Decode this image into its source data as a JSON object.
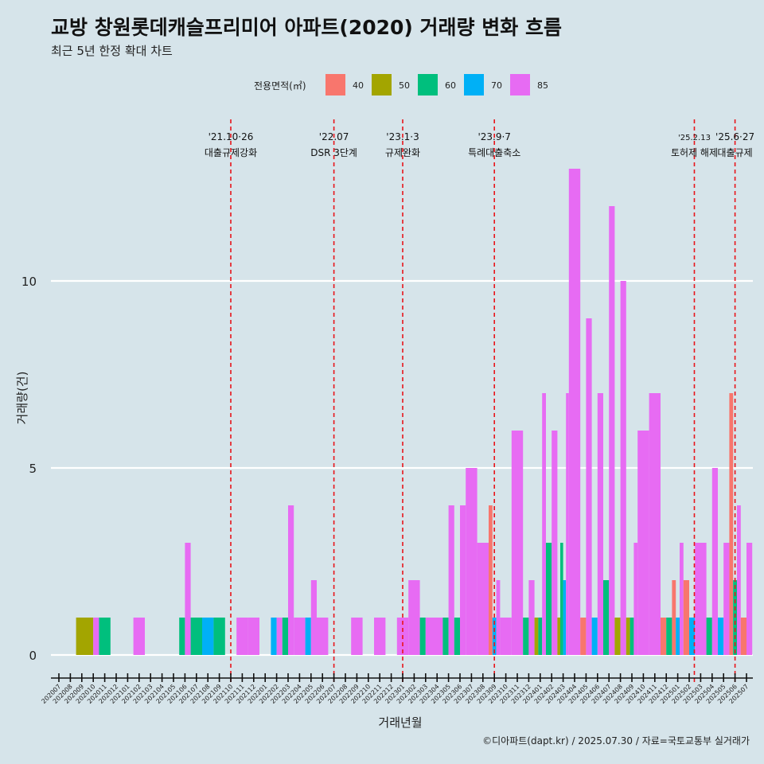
{
  "title": "교방 창원롯데캐슬프리미어 아파트(2020) 거래량 변화 흐름",
  "subtitle": "최근 5년 한정 확대 차트",
  "caption": "©디아파트(dapt.kr) / 2025.07.30 / 자료=국토교통부 실거래가",
  "legend_title": "전용면적(㎡)",
  "colors": {
    "background": "#d6e4ea",
    "grid": "#ffffff",
    "vline": "#e8141a",
    "40": "#f8766d",
    "50": "#a3a500",
    "60": "#00bf7d",
    "70": "#00b0f6",
    "85": "#e76bf3"
  },
  "chart_data": {
    "type": "bar",
    "stacking": "dodge",
    "title": "교방 창원롯데캐슬프리미어 아파트(2020) 거래량 변화 흐름",
    "xlabel": "거래년월",
    "ylabel": "거래량(건)",
    "ylim": [
      -0.6,
      14.3
    ],
    "yticks": [
      0,
      5,
      10
    ],
    "legend": {
      "title": "전용면적(㎡)",
      "position": "top",
      "entries": [
        "40",
        "50",
        "60",
        "70",
        "85"
      ]
    },
    "months": [
      "202007",
      "202008",
      "202009",
      "202010",
      "202011",
      "202012",
      "202101",
      "202102",
      "202103",
      "202104",
      "202105",
      "202106",
      "202107",
      "202108",
      "202109",
      "202110",
      "202111",
      "202112",
      "202201",
      "202202",
      "202203",
      "202204",
      "202205",
      "202206",
      "202207",
      "202208",
      "202209",
      "202210",
      "202211",
      "202212",
      "202301",
      "202302",
      "202303",
      "202304",
      "202305",
      "202306",
      "202307",
      "202308",
      "202309",
      "202310",
      "202311",
      "202312",
      "202401",
      "202402",
      "202403",
      "202404",
      "202405",
      "202406",
      "202407",
      "202408",
      "202409",
      "202410",
      "202411",
      "202412",
      "202501",
      "202502",
      "202503",
      "202504",
      "202505",
      "202506",
      "202507"
    ],
    "data": [
      {
        "month": "202009",
        "bars": [
          {
            "area": "50",
            "value": 1
          }
        ]
      },
      {
        "month": "202010",
        "bars": [
          {
            "area": "50",
            "value": 1
          },
          {
            "area": "85",
            "value": 1
          }
        ]
      },
      {
        "month": "202011",
        "bars": [
          {
            "area": "60",
            "value": 1
          }
        ]
      },
      {
        "month": "202102",
        "bars": [
          {
            "area": "85",
            "value": 1
          }
        ]
      },
      {
        "month": "202106",
        "bars": [
          {
            "area": "60",
            "value": 1
          },
          {
            "area": "85",
            "value": 3
          }
        ]
      },
      {
        "month": "202107",
        "bars": [
          {
            "area": "60",
            "value": 1
          }
        ]
      },
      {
        "month": "202108",
        "bars": [
          {
            "area": "70",
            "value": 1
          }
        ]
      },
      {
        "month": "202109",
        "bars": [
          {
            "area": "60",
            "value": 1
          }
        ]
      },
      {
        "month": "202111",
        "bars": [
          {
            "area": "85",
            "value": 1
          }
        ]
      },
      {
        "month": "202112",
        "bars": [
          {
            "area": "85",
            "value": 1
          }
        ]
      },
      {
        "month": "202202",
        "bars": [
          {
            "area": "70",
            "value": 1
          },
          {
            "area": "85",
            "value": 1
          }
        ]
      },
      {
        "month": "202203",
        "bars": [
          {
            "area": "60",
            "value": 1
          },
          {
            "area": "85",
            "value": 4
          }
        ]
      },
      {
        "month": "202204",
        "bars": [
          {
            "area": "85",
            "value": 1
          }
        ]
      },
      {
        "month": "202205",
        "bars": [
          {
            "area": "70",
            "value": 1
          },
          {
            "area": "85",
            "value": 2
          }
        ]
      },
      {
        "month": "202206",
        "bars": [
          {
            "area": "85",
            "value": 1
          }
        ]
      },
      {
        "month": "202209",
        "bars": [
          {
            "area": "85",
            "value": 1
          }
        ]
      },
      {
        "month": "202211",
        "bars": [
          {
            "area": "85",
            "value": 1
          }
        ]
      },
      {
        "month": "202301",
        "bars": [
          {
            "area": "85",
            "value": 1
          }
        ]
      },
      {
        "month": "202302",
        "bars": [
          {
            "area": "85",
            "value": 2
          }
        ]
      },
      {
        "month": "202303",
        "bars": [
          {
            "area": "60",
            "value": 1
          },
          {
            "area": "85",
            "value": 1
          }
        ]
      },
      {
        "month": "202304",
        "bars": [
          {
            "area": "85",
            "value": 1
          }
        ]
      },
      {
        "month": "202305",
        "bars": [
          {
            "area": "60",
            "value": 1
          },
          {
            "area": "85",
            "value": 4
          }
        ]
      },
      {
        "month": "202306",
        "bars": [
          {
            "area": "60",
            "value": 1
          },
          {
            "area": "85",
            "value": 4
          }
        ]
      },
      {
        "month": "202307",
        "bars": [
          {
            "area": "85",
            "value": 5
          }
        ]
      },
      {
        "month": "202308",
        "bars": [
          {
            "area": "85",
            "value": 3
          }
        ]
      },
      {
        "month": "202309",
        "bars": [
          {
            "area": "40",
            "value": 4
          },
          {
            "area": "70",
            "value": 1
          },
          {
            "area": "85",
            "value": 2
          }
        ]
      },
      {
        "month": "202310",
        "bars": [
          {
            "area": "85",
            "value": 1
          }
        ]
      },
      {
        "month": "202311",
        "bars": [
          {
            "area": "85",
            "value": 6
          }
        ]
      },
      {
        "month": "202312",
        "bars": [
          {
            "area": "60",
            "value": 1
          },
          {
            "area": "85",
            "value": 2
          }
        ]
      },
      {
        "month": "202401",
        "bars": [
          {
            "area": "50",
            "value": 1
          },
          {
            "area": "60",
            "value": 1
          },
          {
            "area": "85",
            "value": 7
          }
        ]
      },
      {
        "month": "202402",
        "bars": [
          {
            "area": "60",
            "value": 3
          },
          {
            "area": "85",
            "value": 6
          }
        ]
      },
      {
        "month": "202403",
        "bars": [
          {
            "area": "50",
            "value": 1
          },
          {
            "area": "60",
            "value": 3
          },
          {
            "area": "70",
            "value": 2
          },
          {
            "area": "85",
            "value": 7
          }
        ]
      },
      {
        "month": "202404",
        "bars": [
          {
            "area": "85",
            "value": 13
          }
        ]
      },
      {
        "month": "202405",
        "bars": [
          {
            "area": "40",
            "value": 1
          },
          {
            "area": "85",
            "value": 9
          }
        ]
      },
      {
        "month": "202406",
        "bars": [
          {
            "area": "70",
            "value": 1
          },
          {
            "area": "85",
            "value": 7
          }
        ]
      },
      {
        "month": "202407",
        "bars": [
          {
            "area": "60",
            "value": 2
          },
          {
            "area": "85",
            "value": 12
          }
        ]
      },
      {
        "month": "202408",
        "bars": [
          {
            "area": "50",
            "value": 1
          },
          {
            "area": "85",
            "value": 10
          }
        ]
      },
      {
        "month": "202409",
        "bars": [
          {
            "area": "50",
            "value": 1
          },
          {
            "area": "60",
            "value": 1
          },
          {
            "area": "85",
            "value": 3
          }
        ]
      },
      {
        "month": "202410",
        "bars": [
          {
            "area": "85",
            "value": 6
          }
        ]
      },
      {
        "month": "202411",
        "bars": [
          {
            "area": "85",
            "value": 7
          }
        ]
      },
      {
        "month": "202412",
        "bars": [
          {
            "area": "40",
            "value": 1
          },
          {
            "area": "60",
            "value": 1
          }
        ]
      },
      {
        "month": "202501",
        "bars": [
          {
            "area": "40",
            "value": 2
          },
          {
            "area": "70",
            "value": 1
          },
          {
            "area": "85",
            "value": 3
          }
        ]
      },
      {
        "month": "202502",
        "bars": [
          {
            "area": "40",
            "value": 2
          },
          {
            "area": "70",
            "value": 1
          }
        ]
      },
      {
        "month": "202503",
        "bars": [
          {
            "area": "85",
            "value": 3
          }
        ]
      },
      {
        "month": "202504",
        "bars": [
          {
            "area": "60",
            "value": 1
          },
          {
            "area": "85",
            "value": 5
          }
        ]
      },
      {
        "month": "202505",
        "bars": [
          {
            "area": "70",
            "value": 1
          },
          {
            "area": "85",
            "value": 3
          }
        ]
      },
      {
        "month": "202506",
        "bars": [
          {
            "area": "40",
            "value": 7
          },
          {
            "area": "60",
            "value": 2
          },
          {
            "area": "85",
            "value": 4
          }
        ]
      },
      {
        "month": "202507",
        "bars": [
          {
            "area": "40",
            "value": 1
          },
          {
            "area": "85",
            "value": 3
          }
        ]
      }
    ],
    "annotations": [
      {
        "at": "202110",
        "date": "'21.10·26",
        "label": "대출규제강화",
        "size": "normal",
        "offset": 0
      },
      {
        "at": "202207",
        "date": "'22.07",
        "label": "DSR 3단계",
        "size": "normal",
        "offset": 0
      },
      {
        "at": "202301",
        "date": "'23.1·3",
        "label": "규제완화",
        "size": "normal",
        "offset": 0
      },
      {
        "at": "202309",
        "date": "'23.9·7",
        "label": "특례대출축소",
        "size": "normal",
        "offset": 0
      },
      {
        "at": "202502",
        "date": "'25.2.13",
        "label": "토허제 해제",
        "size": "small",
        "offset": 0.45
      },
      {
        "at": "202506",
        "date": "'25.6·27",
        "label": "대출규제",
        "size": "normal",
        "offset": 0
      }
    ]
  }
}
